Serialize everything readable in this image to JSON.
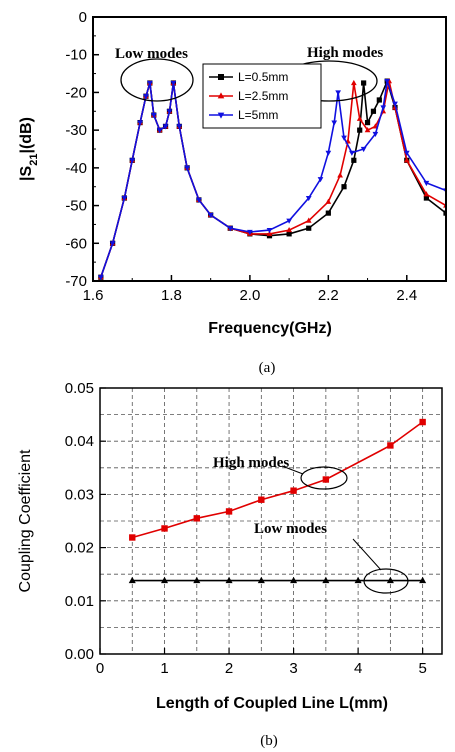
{
  "chart_data": [
    {
      "type": "line",
      "caption": "(a)",
      "xlabel": "Frequency(GHz)",
      "ylabel": "|S21|(dB)",
      "xlim": [
        1.6,
        2.5
      ],
      "ylim": [
        -70,
        0
      ],
      "xticks": [
        1.6,
        1.8,
        2.0,
        2.2,
        2.4
      ],
      "yticks": [
        0,
        -10,
        -20,
        -30,
        -40,
        -50,
        -60,
        -70
      ],
      "grid": false,
      "legend": "top-right",
      "annotations": [
        "Low modes",
        "High modes"
      ],
      "series": [
        {
          "name": "L=0.5mm",
          "color": "#000000",
          "marker": "square",
          "x": [
            1.62,
            1.65,
            1.68,
            1.7,
            1.72,
            1.735,
            1.745,
            1.755,
            1.77,
            1.785,
            1.795,
            1.805,
            1.82,
            1.84,
            1.87,
            1.9,
            1.95,
            2.0,
            2.05,
            2.1,
            2.15,
            2.2,
            2.24,
            2.265,
            2.28,
            2.29,
            2.3,
            2.315,
            2.33,
            2.35,
            2.37,
            2.4,
            2.45,
            2.5
          ],
          "y": [
            -69,
            -60,
            -48,
            -38,
            -28,
            -21,
            -17.5,
            -26,
            -30,
            -29,
            -25,
            -17.5,
            -29,
            -40,
            -48.5,
            -52.5,
            -56,
            -57.5,
            -58,
            -57.5,
            -56,
            -52,
            -45,
            -38,
            -30,
            -17.5,
            -28,
            -25,
            -22,
            -17,
            -24,
            -38,
            -48,
            -52
          ]
        },
        {
          "name": "L=2.5mm",
          "color": "#e00000",
          "marker": "triangle-up",
          "x": [
            1.62,
            1.65,
            1.68,
            1.7,
            1.72,
            1.735,
            1.745,
            1.755,
            1.77,
            1.785,
            1.795,
            1.805,
            1.82,
            1.84,
            1.87,
            1.9,
            1.95,
            2.0,
            2.05,
            2.1,
            2.15,
            2.2,
            2.23,
            2.25,
            2.265,
            2.28,
            2.3,
            2.32,
            2.34,
            2.355,
            2.37,
            2.4,
            2.45,
            2.5
          ],
          "y": [
            -69,
            -60,
            -48,
            -38,
            -28,
            -21,
            -17.5,
            -26,
            -30,
            -29,
            -25,
            -17.5,
            -29,
            -40,
            -48.5,
            -52.5,
            -56,
            -57.5,
            -57.5,
            -56.5,
            -54,
            -49,
            -42,
            -33,
            -17.5,
            -27,
            -30,
            -29,
            -25,
            -17,
            -24,
            -38,
            -47,
            -50
          ]
        },
        {
          "name": "L=5mm",
          "color": "#1010e0",
          "marker": "triangle-down",
          "x": [
            1.62,
            1.65,
            1.68,
            1.7,
            1.72,
            1.735,
            1.745,
            1.755,
            1.77,
            1.785,
            1.795,
            1.805,
            1.82,
            1.84,
            1.87,
            1.9,
            1.95,
            2.0,
            2.05,
            2.1,
            2.15,
            2.18,
            2.2,
            2.215,
            2.225,
            2.24,
            2.26,
            2.29,
            2.32,
            2.34,
            2.35,
            2.37,
            2.4,
            2.45,
            2.5
          ],
          "y": [
            -69,
            -60,
            -48,
            -38,
            -28,
            -21,
            -17.5,
            -26,
            -30,
            -29,
            -25,
            -17.5,
            -29,
            -40,
            -48.5,
            -52.5,
            -56,
            -57,
            -56.5,
            -54,
            -48,
            -43,
            -36,
            -28,
            -20,
            -32,
            -36,
            -35,
            -31,
            -24,
            -17,
            -23,
            -36,
            -44,
            -46
          ]
        }
      ]
    },
    {
      "type": "line",
      "caption": "(b)",
      "xlabel": "Length of Coupled Line L(mm)",
      "ylabel": "Coupling Coefficient",
      "xlim": [
        0,
        5.3
      ],
      "ylim": [
        0,
        0.05
      ],
      "xticks": [
        0,
        1,
        2,
        3,
        4,
        5
      ],
      "yticks": [
        "0.00",
        "0.01",
        "0.02",
        "0.03",
        "0.04",
        "0.05"
      ],
      "grid": true,
      "legend": "none",
      "annotations": [
        "High modes",
        "Low modes"
      ],
      "series": [
        {
          "name": "",
          "color": "#e00000",
          "marker": "square",
          "x": [
            0.5,
            1.0,
            1.5,
            2.0,
            2.5,
            3.0,
            3.5,
            4.5,
            5.0
          ],
          "y": [
            0.0219,
            0.0236,
            0.0255,
            0.0268,
            0.029,
            0.0307,
            0.0328,
            0.0392,
            0.0436
          ]
        },
        {
          "name": "",
          "color": "#000000",
          "marker": "triangle-up",
          "x": [
            0.5,
            1.0,
            1.5,
            2.0,
            2.5,
            3.0,
            3.5,
            4.0,
            4.5,
            5.0
          ],
          "y": [
            0.0138,
            0.0138,
            0.0138,
            0.0138,
            0.0138,
            0.0138,
            0.0138,
            0.0138,
            0.0138,
            0.0138
          ]
        }
      ]
    }
  ]
}
